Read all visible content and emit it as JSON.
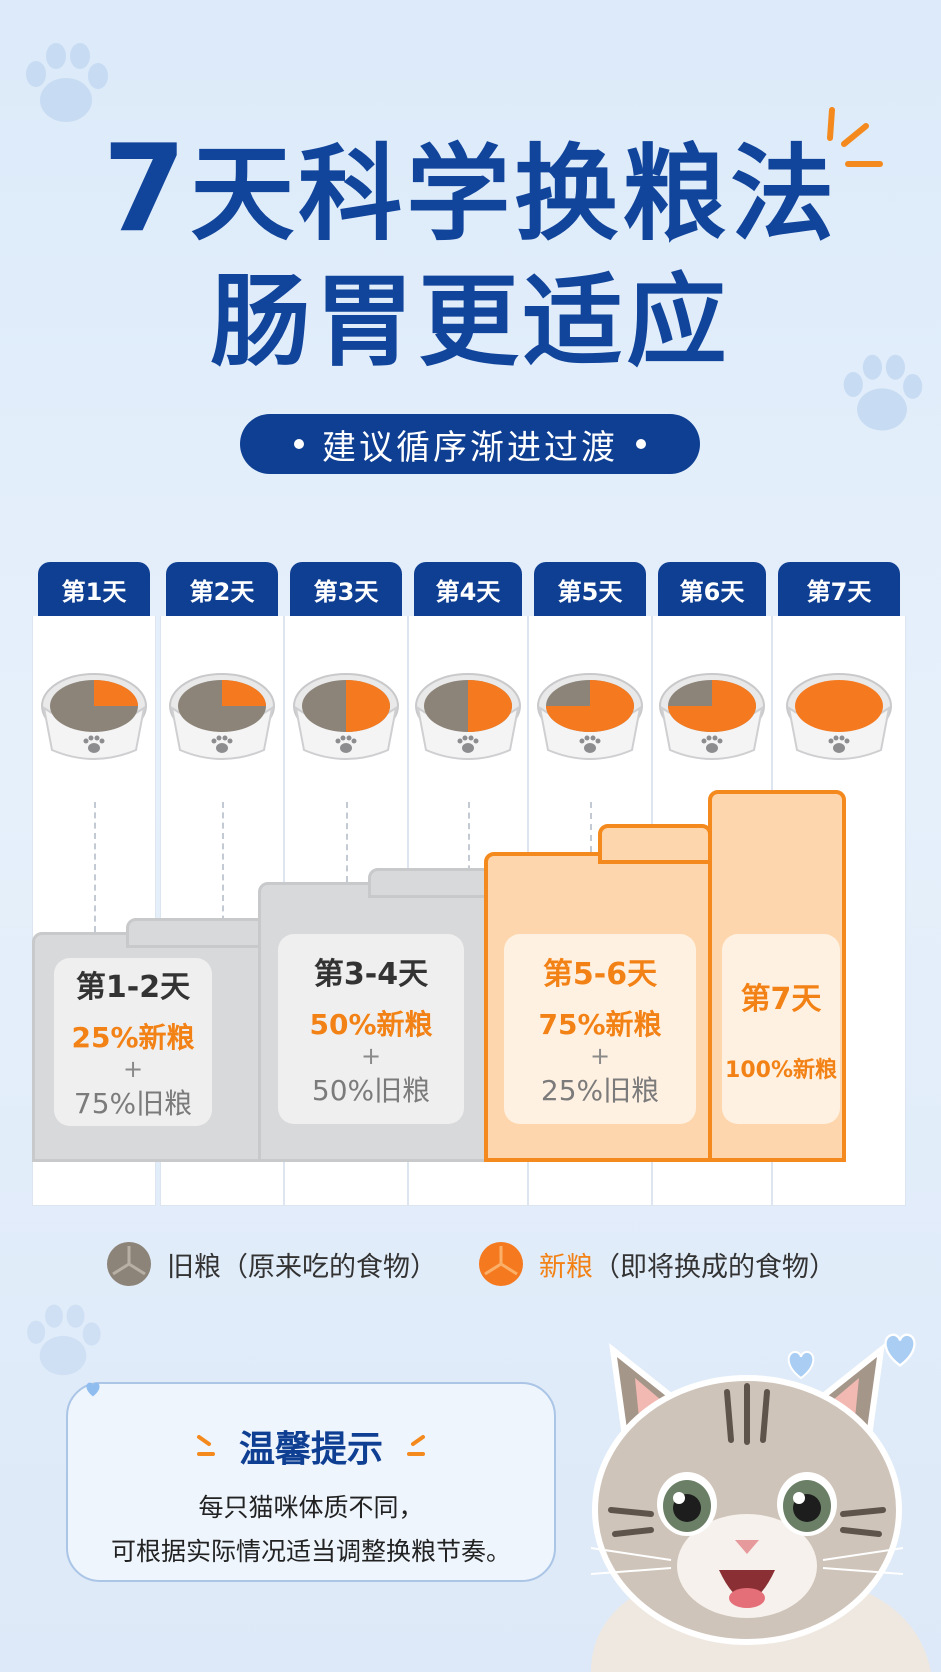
{
  "header": {
    "title_number": "7",
    "title_rest": "天科学换粮法",
    "title_line2": "肠胃更适应",
    "subtitle": "建议循序渐进过渡"
  },
  "days": [
    "第1天",
    "第2天",
    "第3天",
    "第4天",
    "第5天",
    "第6天",
    "第7天"
  ],
  "new_food_share": [
    0.25,
    0.25,
    0.5,
    0.5,
    0.75,
    0.75,
    1.0
  ],
  "stages": [
    {
      "label": "第1-2天",
      "new": "25%新粮",
      "plus": "+",
      "old": "75%旧粮"
    },
    {
      "label": "第3-4天",
      "new": "50%新粮",
      "plus": "+",
      "old": "50%旧粮"
    },
    {
      "label": "第5-6天",
      "new": "75%新粮",
      "plus": "+",
      "old": "25%旧粮"
    },
    {
      "label": "第7天",
      "new": "100%新粮"
    }
  ],
  "legend": {
    "old_name": "旧粮",
    "old_desc": "（原来吃的食物）",
    "new_name": "新粮",
    "new_desc": "（即将换成的食物）"
  },
  "tip": {
    "title": "温馨提示",
    "line1": "每只猫咪体质不同，",
    "line2": "可根据实际情况适当调整换粮节奏。"
  },
  "colors": {
    "navy": "#0f3f92",
    "orange": "#f38216",
    "old_food": "#8d8479",
    "new_food": "#f57a1f"
  }
}
